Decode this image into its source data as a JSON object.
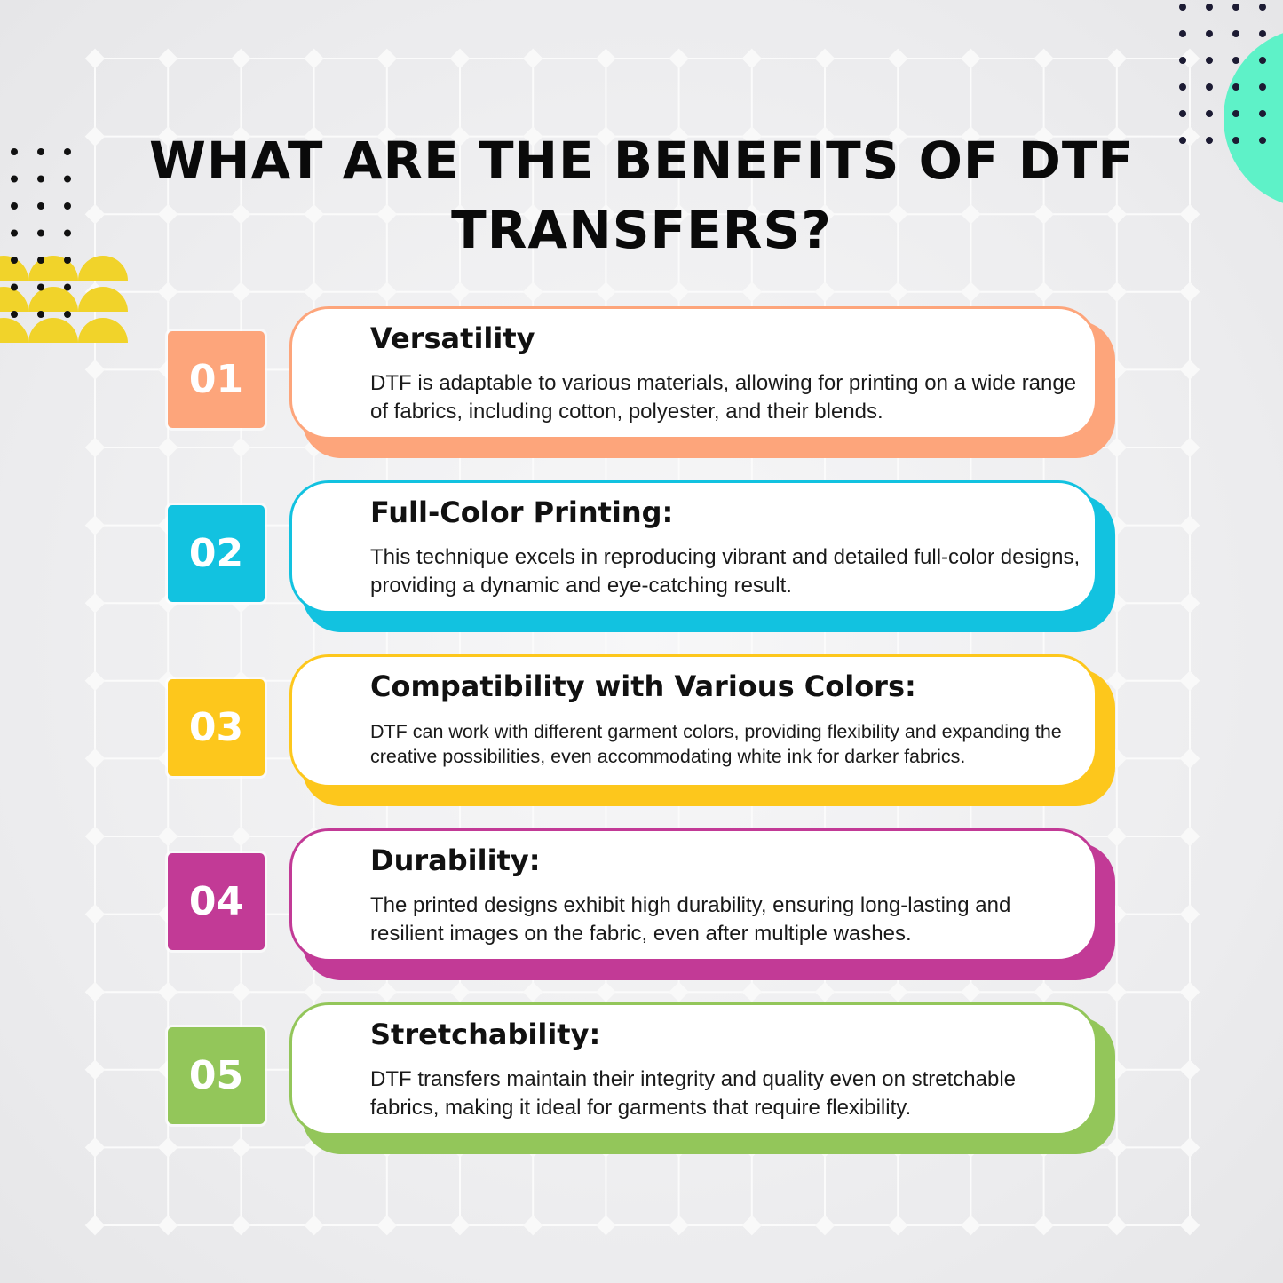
{
  "title": "WHAT ARE THE BENEFITS OF DTF TRANSFERS?",
  "colors": {
    "orange": "#fda57b",
    "cyan": "#12c2e0",
    "yellow": "#fdc71c",
    "magenta": "#c23a96",
    "green": "#93c65a",
    "mint": "#5ef2c8",
    "deco_yellow": "#f1d32a"
  },
  "items": [
    {
      "number": "01",
      "heading": "Versatility",
      "body": "DTF is adaptable to various materials, allowing for printing on a wide range of fabrics, including cotton, polyester, and their blends.",
      "color": "#fda57b"
    },
    {
      "number": "02",
      "heading": "Full-Color Printing:",
      "body": "This technique excels in reproducing vibrant and detailed full-color designs, providing a dynamic and eye-catching result.",
      "color": "#12c2e0"
    },
    {
      "number": "03",
      "heading": "Compatibility with Various Colors:",
      "body": "DTF can work with different garment colors, providing flexibility and expanding the creative possibilities, even accommodating white ink for darker fabrics.",
      "color": "#fdc71c"
    },
    {
      "number": "04",
      "heading": "Durability:",
      "body": "The printed designs exhibit high durability, ensuring long-lasting and resilient images on the fabric, even after multiple washes.",
      "color": "#c23a96"
    },
    {
      "number": "05",
      "heading": "Stretchability:",
      "body": "DTF transfers maintain their integrity and quality even on stretchable fabrics, making it ideal for garments that require flexibility.",
      "color": "#93c65a"
    }
  ]
}
